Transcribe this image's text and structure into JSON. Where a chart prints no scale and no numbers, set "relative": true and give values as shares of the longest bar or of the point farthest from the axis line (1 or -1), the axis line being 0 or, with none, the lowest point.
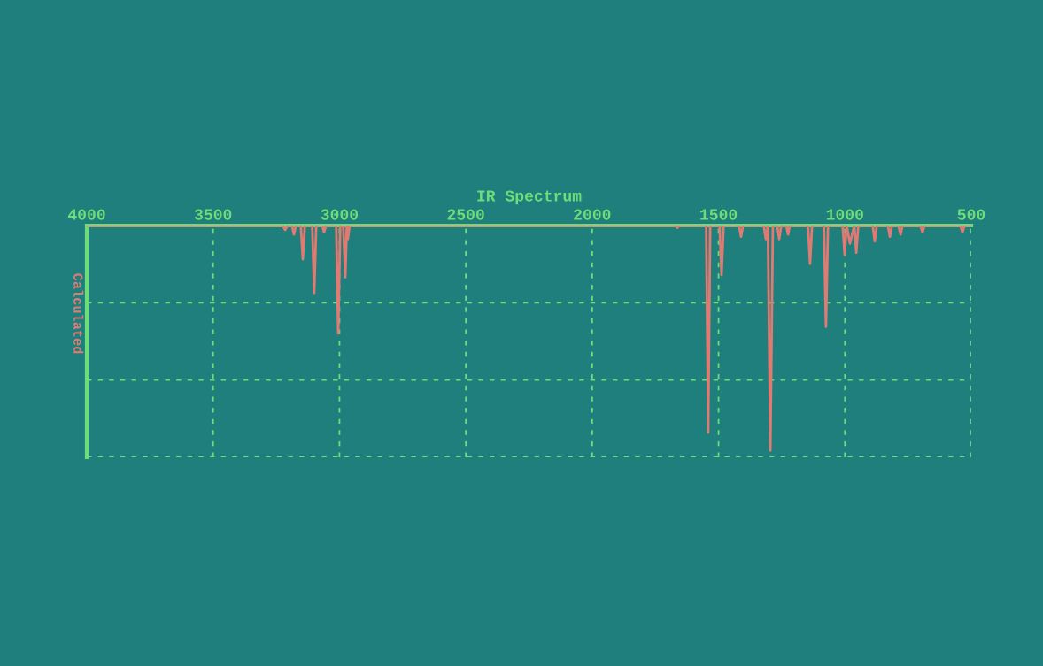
{
  "chart_data": {
    "type": "line",
    "title": "IR Spectrum",
    "ylabel": "Calculated",
    "relative": true,
    "tick_labels": "x",
    "grid": true,
    "xlim": [
      4000,
      500
    ],
    "xticks": [
      4000,
      3500,
      3000,
      2500,
      2000,
      1500,
      1000,
      500
    ],
    "x": [
      4000,
      3225,
      3215,
      3205,
      3188,
      3180,
      3172,
      3153,
      3145,
      3137,
      3108,
      3100,
      3092,
      3069,
      3061,
      3053,
      3013,
      3005,
      2997,
      2985,
      2977,
      2971,
      2967,
      2960,
      1671,
      1663,
      1655,
      1549,
      1541,
      1533,
      1496,
      1488,
      1480,
      1419,
      1411,
      1403,
      1321,
      1313,
      1305,
      1295,
      1285,
      1268,
      1260,
      1252,
      1232,
      1225,
      1218,
      1146,
      1138,
      1130,
      1083,
      1075,
      1067,
      1009,
      1001,
      993,
      980,
      963,
      955,
      947,
      890,
      882,
      874,
      830,
      822,
      814,
      788,
      780,
      772,
      701,
      693,
      685,
      543,
      535,
      527,
      500
    ],
    "series": [
      {
        "color": "#e07b74",
        "values": [
          0,
          0,
          -0.02,
          0,
          0,
          -0.04,
          0,
          0,
          -0.15,
          0,
          0,
          -0.3,
          0,
          0,
          -0.03,
          0,
          0,
          -0.48,
          0,
          0,
          -0.23,
          0,
          -0.06,
          0,
          0,
          -0.01,
          0,
          0,
          -0.92,
          0,
          0,
          -0.22,
          0,
          0,
          -0.05,
          0,
          0,
          -0.06,
          0,
          -1,
          0,
          0,
          -0.06,
          0,
          0,
          -0.04,
          0,
          0,
          -0.17,
          0,
          0,
          -0.45,
          0,
          0,
          -0.13,
          0,
          -0.08,
          0,
          -0.12,
          0,
          0,
          -0.07,
          0,
          0,
          -0.05,
          0,
          0,
          -0.04,
          0,
          0,
          -0.03,
          0,
          0,
          -0.03,
          0,
          0
        ]
      }
    ]
  }
}
